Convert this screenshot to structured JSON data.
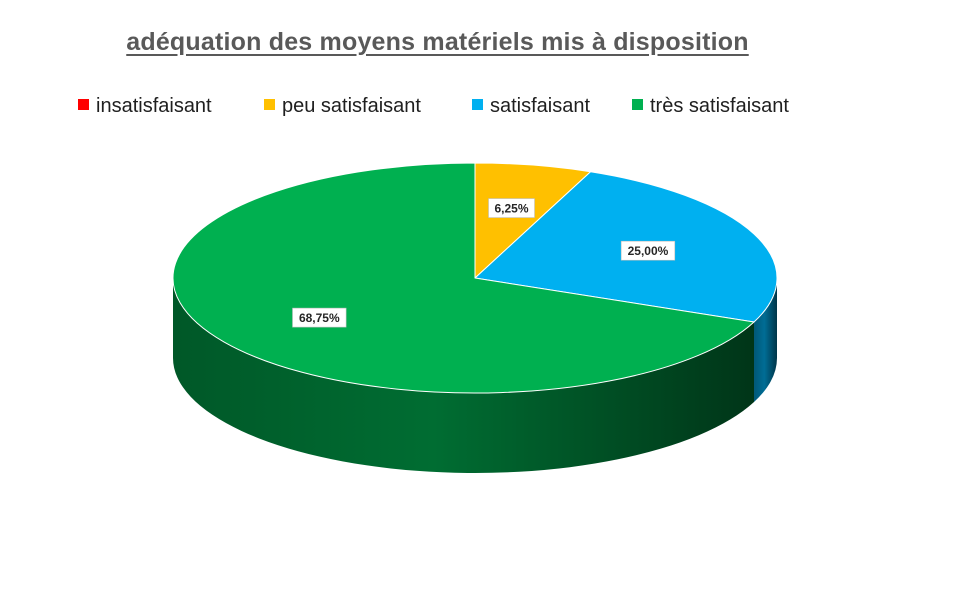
{
  "chart_data": {
    "type": "pie",
    "title": "adéquation des moyens matériels mis à disposition",
    "legend_position": "top",
    "categories": [
      "insatisfaisant",
      "peu satisfaisant",
      "satisfaisant",
      "très satisfaisant"
    ],
    "values": [
      0,
      6.25,
      25.0,
      68.75
    ],
    "data_labels": [
      "",
      "6,25%",
      "25,00%",
      "68,75%"
    ],
    "colors": [
      "#ff0000",
      "#ffc000",
      "#00b0f0",
      "#00b050"
    ]
  }
}
